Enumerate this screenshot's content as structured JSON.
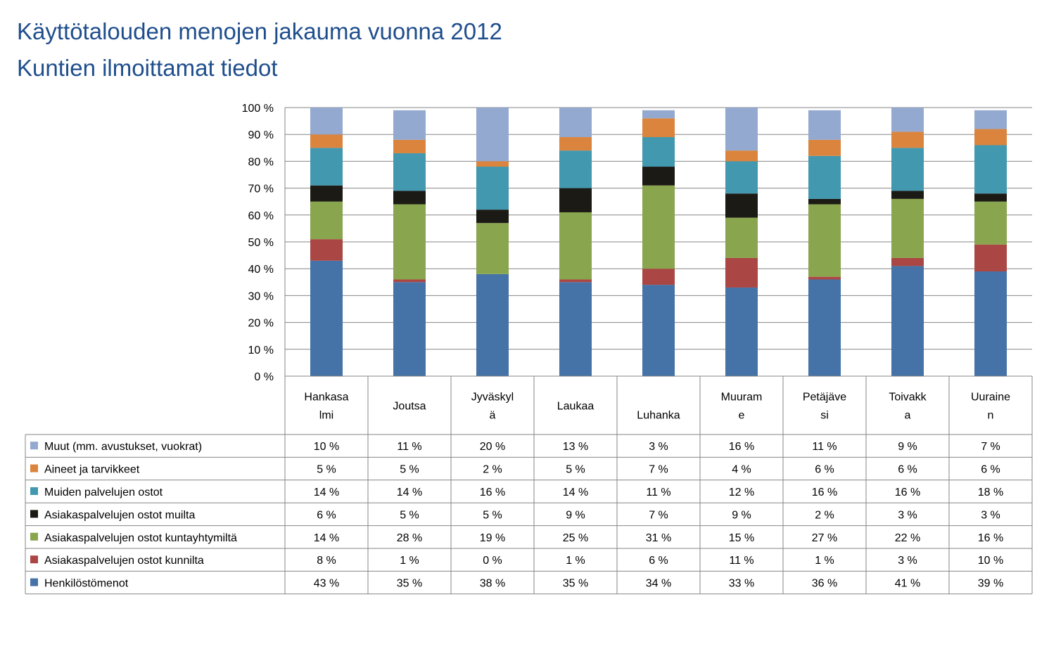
{
  "title": "Käyttötalouden menojen jakauma vuonna 2012",
  "subtitle": "Kuntien ilmoittamat tiedot",
  "chart_data": {
    "type": "bar",
    "stacked": "percent",
    "ylim": [
      0,
      100
    ],
    "y_ticks": [
      "0 %",
      "10 %",
      "20 %",
      "30 %",
      "40 %",
      "50 %",
      "60 %",
      "70 %",
      "80 %",
      "90 %",
      "100 %"
    ],
    "categories": [
      [
        "Hankasa",
        "lmi"
      ],
      [
        "Joutsa"
      ],
      [
        "Jyväskyl",
        "ä"
      ],
      [
        "Laukaa"
      ],
      [
        "Luhanka"
      ],
      [
        "Muuram",
        "e"
      ],
      [
        "Petäjäve",
        "si"
      ],
      [
        "Toivakk",
        "a"
      ],
      [
        "Uuraine",
        "n"
      ]
    ],
    "series": [
      {
        "name": "Henkilöstömenot",
        "color": "#4572a7",
        "values": [
          43,
          35,
          38,
          35,
          34,
          33,
          36,
          41,
          39
        ]
      },
      {
        "name": "Asiakaspalvelujen ostot kunnilta",
        "color": "#aa4643",
        "values": [
          8,
          1,
          0,
          1,
          6,
          11,
          1,
          3,
          10
        ]
      },
      {
        "name": "Asiakaspalvelujen ostot kuntayhtymiltä",
        "color": "#89a54e",
        "values": [
          14,
          28,
          19,
          25,
          31,
          15,
          27,
          22,
          16
        ]
      },
      {
        "name": "Asiakaspalvelujen ostot muilta",
        "color": "#1c1a14",
        "values": [
          6,
          5,
          5,
          9,
          7,
          9,
          2,
          3,
          3
        ]
      },
      {
        "name": "Muiden palvelujen ostot",
        "color": "#4198af",
        "values": [
          14,
          14,
          16,
          14,
          11,
          12,
          16,
          16,
          18
        ]
      },
      {
        "name": "Aineet ja tarvikkeet",
        "color": "#db843d",
        "values": [
          5,
          5,
          2,
          5,
          7,
          4,
          6,
          6,
          6
        ]
      },
      {
        "name": "Muut (mm. avustukset, vuokrat)",
        "color": "#93a9cf",
        "values": [
          10,
          11,
          20,
          13,
          3,
          16,
          11,
          9,
          7
        ]
      }
    ],
    "table_rows_order": [
      "Muut (mm. avustukset, vuokrat)",
      "Aineet ja tarvikkeet",
      "Muiden palvelujen ostot",
      "Asiakaspalvelujen ostot muilta",
      "Asiakaspalvelujen ostot kuntayhtymiltä",
      "Asiakaspalvelujen ostot kunnilta",
      "Henkilöstömenot"
    ],
    "value_suffix": " %",
    "grid": true,
    "legend": "data table below chart"
  }
}
